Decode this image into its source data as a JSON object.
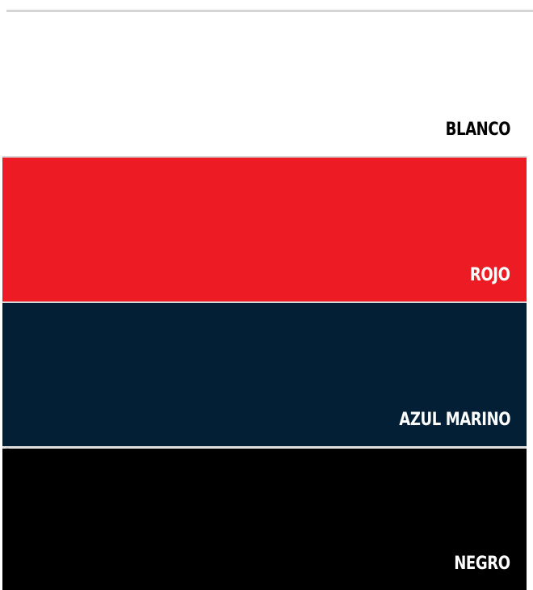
{
  "swatches": [
    {
      "label": "BLANCO",
      "background": "#ffffff",
      "text_color": "#000000"
    },
    {
      "label": "ROJO",
      "background": "#ed1c24",
      "text_color": "#ffffff"
    },
    {
      "label": "AZUL MARINO",
      "background": "#021f36",
      "text_color": "#ffffff"
    },
    {
      "label": "NEGRO",
      "background": "#000000",
      "text_color": "#ffffff"
    }
  ]
}
